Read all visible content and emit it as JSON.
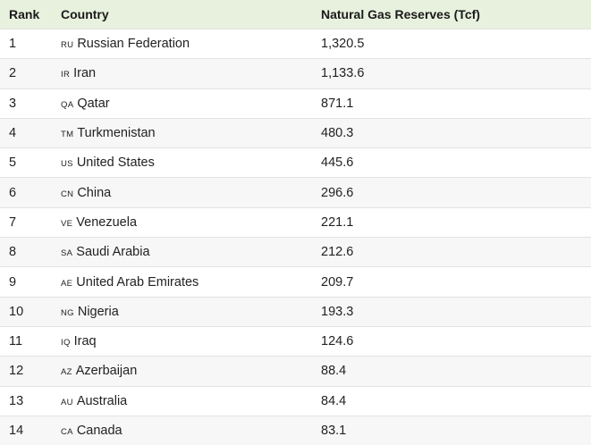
{
  "headers": {
    "rank": "Rank",
    "country": "Country",
    "reserves": "Natural Gas Reserves (Tcf)"
  },
  "rows": [
    {
      "rank": "1",
      "code": "RU",
      "country": "Russian Federation",
      "value": "1,320.5"
    },
    {
      "rank": "2",
      "code": "IR",
      "country": "Iran",
      "value": "1,133.6"
    },
    {
      "rank": "3",
      "code": "QA",
      "country": "Qatar",
      "value": "871.1"
    },
    {
      "rank": "4",
      "code": "TM",
      "country": "Turkmenistan",
      "value": "480.3"
    },
    {
      "rank": "5",
      "code": "US",
      "country": "United States",
      "value": "445.6"
    },
    {
      "rank": "6",
      "code": "CN",
      "country": "China",
      "value": "296.6"
    },
    {
      "rank": "7",
      "code": "VE",
      "country": "Venezuela",
      "value": "221.1"
    },
    {
      "rank": "8",
      "code": "SA",
      "country": "Saudi Arabia",
      "value": "212.6"
    },
    {
      "rank": "9",
      "code": "AE",
      "country": "United Arab Emirates",
      "value": "209.7"
    },
    {
      "rank": "10",
      "code": "NG",
      "country": "Nigeria",
      "value": "193.3"
    },
    {
      "rank": "11",
      "code": "IQ",
      "country": "Iraq",
      "value": "124.6"
    },
    {
      "rank": "12",
      "code": "AZ",
      "country": "Azerbaijan",
      "value": "88.4"
    },
    {
      "rank": "13",
      "code": "AU",
      "country": "Australia",
      "value": "84.4"
    },
    {
      "rank": "14",
      "code": "CA",
      "country": "Canada",
      "value": "83.1"
    }
  ]
}
